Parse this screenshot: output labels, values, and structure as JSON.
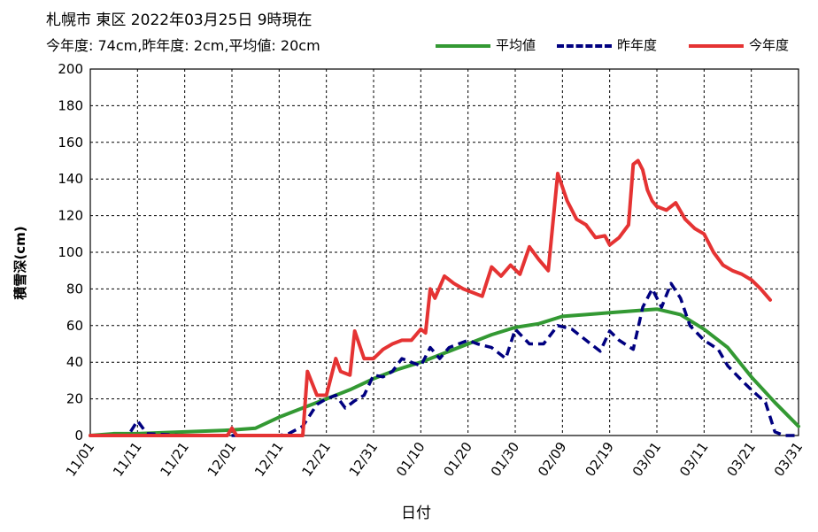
{
  "header": {
    "title": "札幌市 東区 2022年03月25日 9時現在",
    "subtitle": "今年度: 74cm,昨年度: 2cm,平均値: 20cm"
  },
  "legend": [
    {
      "label": "平均値",
      "color": "#339933",
      "style": "solid"
    },
    {
      "label": "昨年度",
      "color": "#000080",
      "style": "dashed"
    },
    {
      "label": "今年度",
      "color": "#e53333",
      "style": "solid"
    }
  ],
  "chart_data": {
    "type": "line",
    "xlabel": "日付",
    "ylabel": "積雪深(cm)",
    "ylim": [
      0,
      200
    ],
    "yticks": [
      0,
      20,
      40,
      60,
      80,
      100,
      120,
      140,
      160,
      180,
      200
    ],
    "xlim": [
      "11/01",
      "03/31"
    ],
    "xticks": [
      "11/01",
      "11/11",
      "11/21",
      "12/01",
      "12/11",
      "12/21",
      "12/31",
      "01/10",
      "01/20",
      "01/30",
      "02/09",
      "02/19",
      "03/01",
      "03/11",
      "03/21",
      "03/31"
    ],
    "grid": true,
    "legend_position": "top-right",
    "series": [
      {
        "name": "平均値",
        "color": "#339933",
        "style": "solid",
        "points": [
          [
            "11/01",
            0
          ],
          [
            "11/06",
            1
          ],
          [
            "11/11",
            1
          ],
          [
            "11/21",
            2
          ],
          [
            "12/01",
            3
          ],
          [
            "12/06",
            4
          ],
          [
            "12/11",
            10
          ],
          [
            "12/16",
            15
          ],
          [
            "12/21",
            20
          ],
          [
            "12/26",
            25
          ],
          [
            "12/31",
            31
          ],
          [
            "01/05",
            36
          ],
          [
            "01/10",
            40
          ],
          [
            "01/15",
            45
          ],
          [
            "01/20",
            50
          ],
          [
            "01/25",
            55
          ],
          [
            "01/30",
            59
          ],
          [
            "02/04",
            61
          ],
          [
            "02/09",
            65
          ],
          [
            "02/14",
            66
          ],
          [
            "02/19",
            67
          ],
          [
            "02/24",
            68
          ],
          [
            "03/01",
            69
          ],
          [
            "03/06",
            66
          ],
          [
            "03/11",
            58
          ],
          [
            "03/16",
            48
          ],
          [
            "03/21",
            32
          ],
          [
            "03/26",
            18
          ],
          [
            "03/31",
            5
          ]
        ]
      },
      {
        "name": "昨年度",
        "color": "#000080",
        "style": "dashed",
        "points": [
          [
            "11/01",
            0
          ],
          [
            "11/09",
            0
          ],
          [
            "11/11",
            8
          ],
          [
            "11/13",
            1
          ],
          [
            "11/21",
            0
          ],
          [
            "12/01",
            0
          ],
          [
            "12/11",
            0
          ],
          [
            "12/13",
            1
          ],
          [
            "12/16",
            5
          ],
          [
            "12/19",
            17
          ],
          [
            "12/21",
            20
          ],
          [
            "12/23",
            22
          ],
          [
            "12/25",
            15
          ],
          [
            "12/27",
            19
          ],
          [
            "12/29",
            22
          ],
          [
            "12/31",
            33
          ],
          [
            "01/02",
            32
          ],
          [
            "01/04",
            35
          ],
          [
            "01/06",
            42
          ],
          [
            "01/08",
            40
          ],
          [
            "01/10",
            38
          ],
          [
            "01/12",
            48
          ],
          [
            "01/14",
            42
          ],
          [
            "01/16",
            48
          ],
          [
            "01/18",
            50
          ],
          [
            "01/20",
            52
          ],
          [
            "01/22",
            50
          ],
          [
            "01/25",
            48
          ],
          [
            "01/28",
            42
          ],
          [
            "01/30",
            58
          ],
          [
            "02/02",
            50
          ],
          [
            "02/05",
            50
          ],
          [
            "02/08",
            60
          ],
          [
            "02/11",
            58
          ],
          [
            "02/14",
            52
          ],
          [
            "02/17",
            46
          ],
          [
            "02/19",
            57
          ],
          [
            "02/21",
            52
          ],
          [
            "02/24",
            47
          ],
          [
            "02/26",
            70
          ],
          [
            "02/28",
            80
          ],
          [
            "03/02",
            70
          ],
          [
            "03/04",
            83
          ],
          [
            "03/06",
            75
          ],
          [
            "03/08",
            60
          ],
          [
            "03/11",
            52
          ],
          [
            "03/14",
            47
          ],
          [
            "03/16",
            38
          ],
          [
            "03/19",
            30
          ],
          [
            "03/21",
            25
          ],
          [
            "03/24",
            18
          ],
          [
            "03/26",
            2
          ],
          [
            "03/28",
            0
          ],
          [
            "03/31",
            0
          ]
        ]
      },
      {
        "name": "今年度",
        "color": "#e53333",
        "style": "solid",
        "points": [
          [
            "11/01",
            0
          ],
          [
            "11/30",
            0
          ],
          [
            "12/01",
            4
          ],
          [
            "12/02",
            0
          ],
          [
            "12/15",
            0
          ],
          [
            "12/16",
            0
          ],
          [
            "12/17",
            35
          ],
          [
            "12/19",
            22
          ],
          [
            "12/21",
            22
          ],
          [
            "12/23",
            42
          ],
          [
            "12/24",
            35
          ],
          [
            "12/26",
            33
          ],
          [
            "12/27",
            57
          ],
          [
            "12/29",
            42
          ],
          [
            "12/31",
            42
          ],
          [
            "01/02",
            47
          ],
          [
            "01/04",
            50
          ],
          [
            "01/06",
            52
          ],
          [
            "01/08",
            52
          ],
          [
            "01/10",
            58
          ],
          [
            "01/11",
            56
          ],
          [
            "01/12",
            80
          ],
          [
            "01/13",
            75
          ],
          [
            "01/15",
            87
          ],
          [
            "01/17",
            83
          ],
          [
            "01/19",
            80
          ],
          [
            "01/21",
            78
          ],
          [
            "01/23",
            76
          ],
          [
            "01/25",
            92
          ],
          [
            "01/27",
            87
          ],
          [
            "01/29",
            93
          ],
          [
            "01/31",
            88
          ],
          [
            "02/02",
            103
          ],
          [
            "02/04",
            96
          ],
          [
            "02/06",
            90
          ],
          [
            "02/08",
            143
          ],
          [
            "02/10",
            128
          ],
          [
            "02/12",
            118
          ],
          [
            "02/14",
            115
          ],
          [
            "02/16",
            108
          ],
          [
            "02/18",
            109
          ],
          [
            "02/19",
            104
          ],
          [
            "02/21",
            108
          ],
          [
            "02/23",
            115
          ],
          [
            "02/24",
            148
          ],
          [
            "02/25",
            150
          ],
          [
            "02/26",
            145
          ],
          [
            "02/27",
            134
          ],
          [
            "02/28",
            128
          ],
          [
            "03/01",
            125
          ],
          [
            "03/03",
            123
          ],
          [
            "03/05",
            127
          ],
          [
            "03/07",
            118
          ],
          [
            "03/09",
            113
          ],
          [
            "03/11",
            110
          ],
          [
            "03/13",
            100
          ],
          [
            "03/15",
            93
          ],
          [
            "03/17",
            90
          ],
          [
            "03/19",
            88
          ],
          [
            "03/21",
            85
          ],
          [
            "03/23",
            80
          ],
          [
            "03/25",
            74
          ]
        ]
      }
    ]
  }
}
